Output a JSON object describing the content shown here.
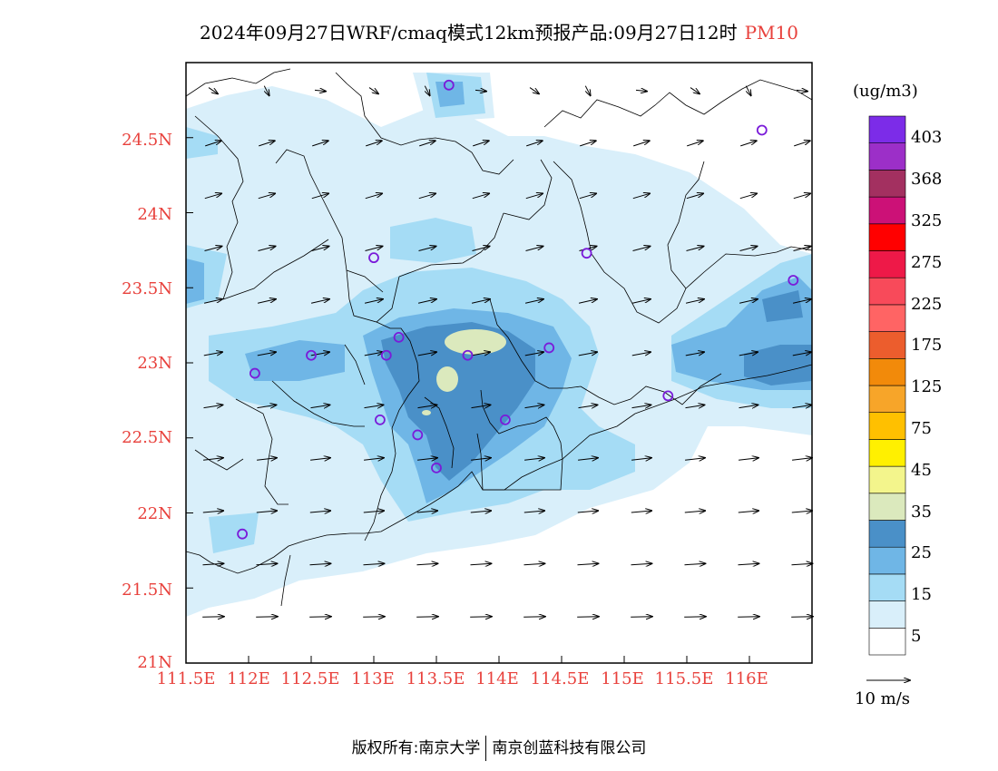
{
  "header": {
    "title": "2024年09月27日WRF/cmaq模式12km预报产品:09月27日12时",
    "pollutant": "PM10"
  },
  "axes": {
    "lat_ticks": [
      "24.5N",
      "24N",
      "23.5N",
      "23N",
      "22.5N",
      "22N",
      "21.5N",
      "21N"
    ],
    "lon_ticks": [
      "111.5E",
      "112E",
      "112.5E",
      "113E",
      "113.5E",
      "114E",
      "114.5E",
      "115E",
      "115.5E",
      "116E"
    ]
  },
  "legend": {
    "unit": "(ug/m3)",
    "labels": [
      "403",
      "368",
      "325",
      "275",
      "225",
      "175",
      "125",
      "75",
      "45",
      "35",
      "25",
      "15",
      "5"
    ],
    "colors": [
      "#ffffff",
      "#d9effa",
      "#a5dcf5",
      "#6fb6e6",
      "#4a90c8",
      "#dbe9bd",
      "#f3f58c",
      "#fff000",
      "#ffc000",
      "#f7a529",
      "#f28a0a",
      "#ec5d2d",
      "#ff6464",
      "#f84a5a",
      "#ee1948",
      "#ff0000",
      "#cc1177",
      "#a33060",
      "#9c2fc8",
      "#7c2ce8"
    ],
    "wind_reference": "10 m/s"
  },
  "footer": {
    "left": "版权所有:南京大学",
    "right": "南京创蓝科技有限公司"
  },
  "stations": [
    {
      "lon": 113.6,
      "lat": 24.85
    },
    {
      "lon": 116.1,
      "lat": 24.55
    },
    {
      "lon": 113.0,
      "lat": 23.7
    },
    {
      "lon": 114.7,
      "lat": 23.73
    },
    {
      "lon": 116.35,
      "lat": 23.55
    },
    {
      "lon": 113.2,
      "lat": 23.17
    },
    {
      "lon": 112.5,
      "lat": 23.05
    },
    {
      "lon": 113.1,
      "lat": 23.05
    },
    {
      "lon": 113.75,
      "lat": 23.05
    },
    {
      "lon": 114.4,
      "lat": 23.1
    },
    {
      "lon": 112.05,
      "lat": 22.93
    },
    {
      "lon": 115.35,
      "lat": 22.78
    },
    {
      "lon": 113.05,
      "lat": 22.62
    },
    {
      "lon": 114.05,
      "lat": 22.62
    },
    {
      "lon": 113.35,
      "lat": 22.52
    },
    {
      "lon": 113.5,
      "lat": 22.3
    },
    {
      "lon": 111.95,
      "lat": 21.86
    }
  ]
}
